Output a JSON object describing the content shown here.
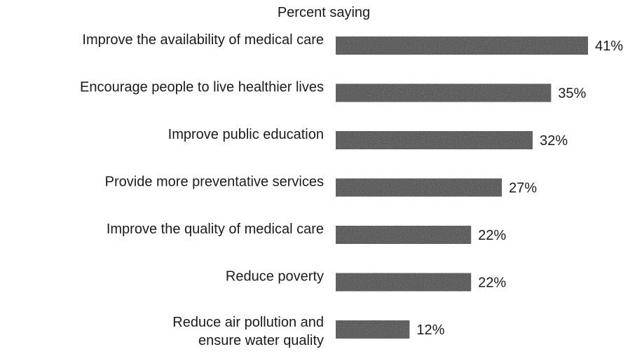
{
  "chart_data": {
    "type": "bar",
    "orientation": "horizontal",
    "title": "Percent saying",
    "categories": [
      "Improve the availability of medical care",
      "Encourage people to live healthier lives",
      "Improve public education",
      "Provide more preventative services",
      "Improve the quality of medical care",
      "Reduce poverty",
      "Reduce air pollution and ensure water quality"
    ],
    "category_lines": [
      [
        "Improve the availability of medical care"
      ],
      [
        "Encourage people to live healthier lives"
      ],
      [
        "Improve public education"
      ],
      [
        "Provide more preventative services"
      ],
      [
        "Improve the quality of medical care"
      ],
      [
        "Reduce poverty"
      ],
      [
        "Reduce air pollution and",
        "ensure water quality"
      ]
    ],
    "values": [
      41,
      35,
      32,
      27,
      22,
      22,
      12
    ],
    "value_labels": [
      "41%",
      "35%",
      "32%",
      "27%",
      "22%",
      "22%",
      "12%"
    ],
    "unit": "%",
    "bar_color": "#3a3a3a",
    "grid": false,
    "legend": "none"
  }
}
